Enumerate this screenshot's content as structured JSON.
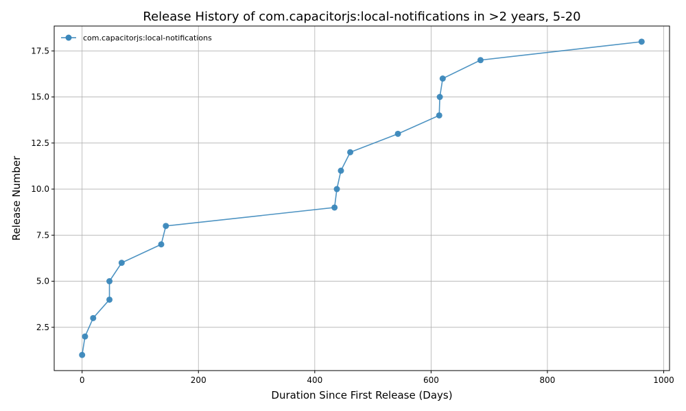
{
  "chart_data": {
    "type": "line",
    "title": "Release History of com.capacitorjs:local-notifications in >2 years, 5-20",
    "xlabel": "Duration Since First Release (Days)",
    "ylabel": "Release Number",
    "xlim": [
      -48,
      1010
    ],
    "ylim": [
      0.15,
      18.85
    ],
    "xticks": [
      0,
      200,
      400,
      600,
      800,
      1000
    ],
    "xtick_labels": [
      "0",
      "200",
      "400",
      "600",
      "800",
      "1000"
    ],
    "yticks": [
      2.5,
      5.0,
      7.5,
      10.0,
      12.5,
      15.0,
      17.5
    ],
    "ytick_labels": [
      "2.5",
      "5.0",
      "7.5",
      "10.0",
      "12.5",
      "15.0",
      "17.5"
    ],
    "grid": true,
    "legend_position": "top-left",
    "series": [
      {
        "name": "com.capacitorjs:local-notifications",
        "color": "#3a87bb",
        "marker": "circle",
        "x": [
          0,
          5,
          19,
          47,
          47,
          68,
          136,
          144,
          434,
          438,
          445,
          461,
          543,
          614,
          615,
          620,
          685,
          962
        ],
        "y": [
          1,
          2,
          3,
          4,
          5,
          6,
          7,
          8,
          9,
          10,
          11,
          12,
          13,
          14,
          15,
          16,
          17,
          18
        ]
      }
    ]
  }
}
